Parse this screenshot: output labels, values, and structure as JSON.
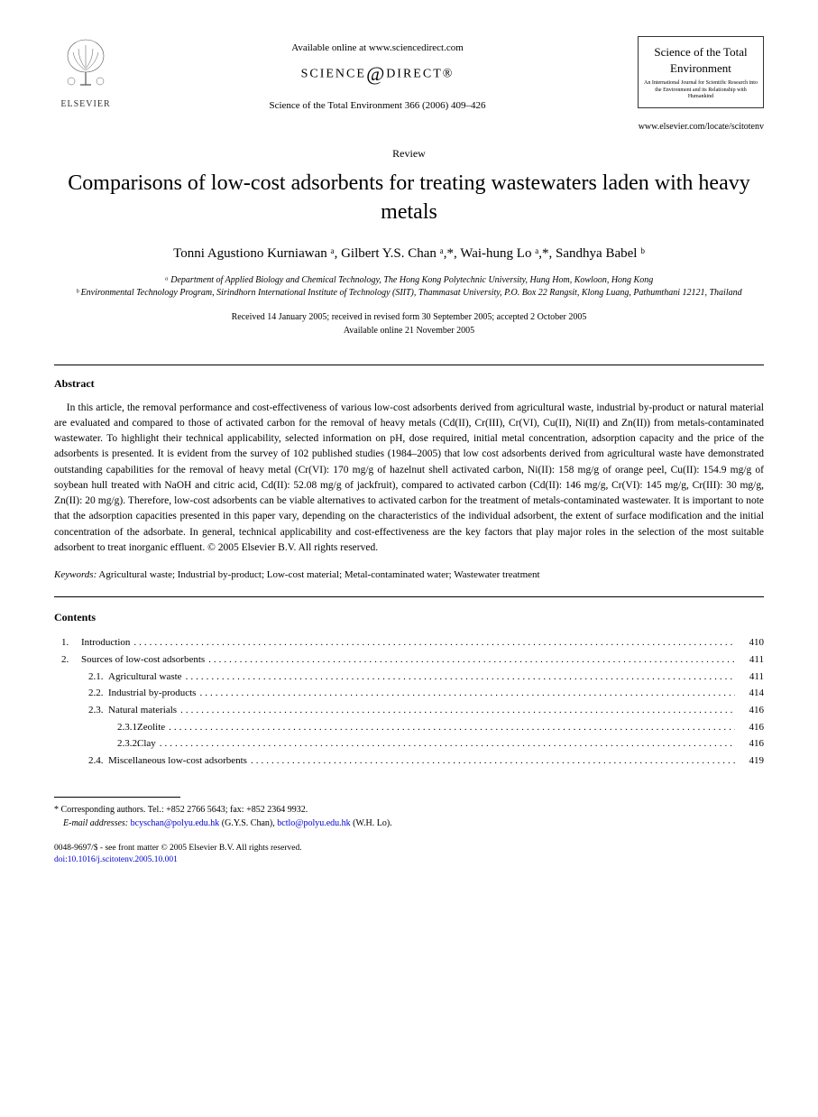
{
  "header": {
    "available_online": "Available online at www.sciencedirect.com",
    "sciencedirect_prefix": "SCIENCE",
    "sciencedirect_suffix": "DIRECT®",
    "citation": "Science of the Total Environment 366 (2006) 409–426",
    "elsevier_label": "ELSEVIER",
    "journal_title": "Science of the Total Environment",
    "journal_subtitle": "An International Journal for Scientific Research into the Environment and its Relationship with Humankind",
    "journal_url": "www.elsevier.com/locate/scitotenv"
  },
  "article": {
    "type_label": "Review",
    "title": "Comparisons of low-cost adsorbents for treating wastewaters laden with heavy metals",
    "authors_html": "Tonni Agustiono Kurniawan ᵃ, Gilbert Y.S. Chan ᵃ,*, Wai-hung Lo ᵃ,*, Sandhya Babel ᵇ",
    "affiliation_a": "ᵃ Department of Applied Biology and Chemical Technology, The Hong Kong Polytechnic University, Hung Hom, Kowloon, Hong Kong",
    "affiliation_b": "ᵇ Environmental Technology Program, Sirindhorn International Institute of Technology (SIIT), Thammasat University, P.O. Box 22 Rangsit, Klong Luang, Pathumthani 12121, Thailand",
    "received": "Received 14 January 2005; received in revised form 30 September 2005; accepted 2 October 2005",
    "available": "Available online 21 November 2005"
  },
  "abstract": {
    "heading": "Abstract",
    "body": "In this article, the removal performance and cost-effectiveness of various low-cost adsorbents derived from agricultural waste, industrial by-product or natural material are evaluated and compared to those of activated carbon for the removal of heavy metals (Cd(II), Cr(III), Cr(VI), Cu(II), Ni(II) and Zn(II)) from metals-contaminated wastewater. To highlight their technical applicability, selected information on pH, dose required, initial metal concentration, adsorption capacity and the price of the adsorbents is presented. It is evident from the survey of 102 published studies (1984–2005) that low cost adsorbents derived from agricultural waste have demonstrated outstanding capabilities for the removal of heavy metal (Cr(VI): 170 mg/g of hazelnut shell activated carbon, Ni(II): 158 mg/g of orange peel, Cu(II): 154.9 mg/g of soybean hull treated with NaOH and citric acid, Cd(II): 52.08 mg/g of jackfruit), compared to activated carbon (Cd(II): 146 mg/g, Cr(VI): 145 mg/g, Cr(III): 30 mg/g, Zn(II): 20 mg/g). Therefore, low-cost adsorbents can be viable alternatives to activated carbon for the treatment of metals-contaminated wastewater. It is important to note that the adsorption capacities presented in this paper vary, depending on the characteristics of the individual adsorbent, the extent of surface modification and the initial concentration of the adsorbate. In general, technical applicability and cost-effectiveness are the key factors that play major roles in the selection of the most suitable adsorbent to treat inorganic effluent. © 2005 Elsevier B.V. All rights reserved."
  },
  "keywords": {
    "label": "Keywords:",
    "text": " Agricultural waste; Industrial by-product; Low-cost material; Metal-contaminated water; Wastewater treatment"
  },
  "contents": {
    "heading": "Contents",
    "items": [
      {
        "level": 1,
        "num": "1.",
        "label": "Introduction",
        "page": "410"
      },
      {
        "level": 1,
        "num": "2.",
        "label": "Sources of low-cost adsorbents",
        "page": "411"
      },
      {
        "level": 2,
        "num": "2.1.",
        "label": "Agricultural waste",
        "page": "411"
      },
      {
        "level": 2,
        "num": "2.2.",
        "label": "Industrial by-products",
        "page": "414"
      },
      {
        "level": 2,
        "num": "2.3.",
        "label": "Natural materials",
        "page": "416"
      },
      {
        "level": 3,
        "num": "2.3.1.",
        "label": "Zeolite",
        "page": "416"
      },
      {
        "level": 3,
        "num": "2.3.2.",
        "label": "Clay",
        "page": "416"
      },
      {
        "level": 2,
        "num": "2.4.",
        "label": "Miscellaneous low-cost adsorbents",
        "page": "419"
      }
    ]
  },
  "footnotes": {
    "corresponding": "* Corresponding authors. Tel.: +852 2766 5643; fax: +852 2364 9932.",
    "email_label": "E-mail addresses:",
    "email1": "bcyschan@polyu.edu.hk",
    "email1_name": " (G.Y.S. Chan), ",
    "email2": "bctlo@polyu.edu.hk",
    "email2_name": " (W.H. Lo)."
  },
  "footer": {
    "issn": "0048-9697/$ - see front matter © 2005 Elsevier B.V. All rights reserved.",
    "doi": "doi:10.1016/j.scitotenv.2005.10.001"
  },
  "colors": {
    "text": "#000000",
    "link": "#0000cc",
    "background": "#ffffff"
  }
}
